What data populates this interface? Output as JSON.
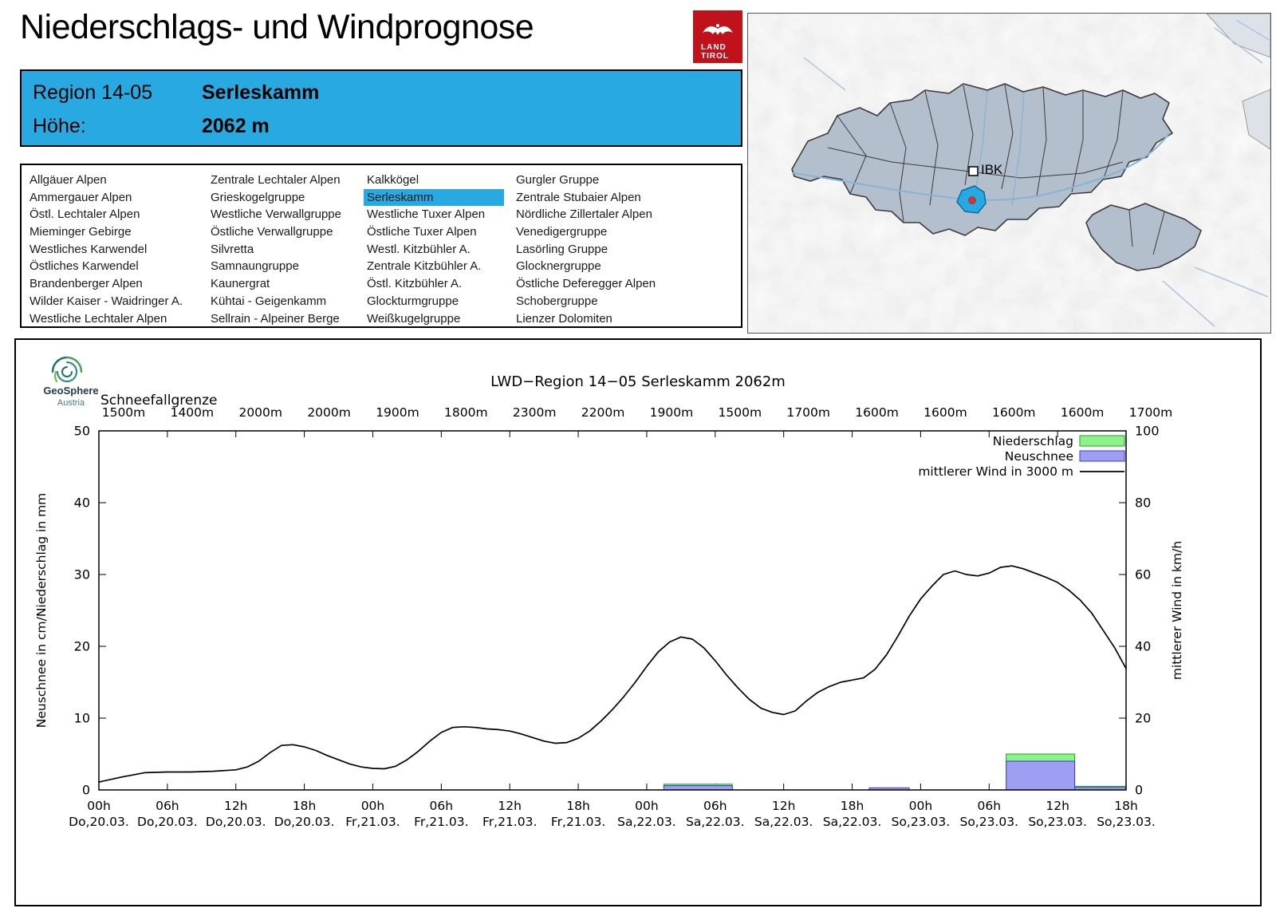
{
  "colors": {
    "accent": "#29a9e2",
    "precip_fill": "#8df28d",
    "precip_border": "#17a617",
    "snow_fill": "#9e9ef2",
    "snow_border": "#3c3cc8",
    "wind_line": "#000000",
    "logo_red": "#c1121c",
    "map_region_fill": "#b3bfcc",
    "map_region_border": "#3b3b3b",
    "map_river": "#86b3d6"
  },
  "header": {
    "title": "Niederschlags- und Windprognose",
    "logo_line1": "LAND",
    "logo_line2": "TIROL"
  },
  "region_box": {
    "region_label": "Region 14-05",
    "region_name": "Serleskamm",
    "altitude_label": "Höhe:",
    "altitude_value": "2062 m"
  },
  "region_list": {
    "selected": "Serleskamm",
    "columns": [
      [
        "Allgäuer Alpen",
        "Ammergauer Alpen",
        "Östl. Lechtaler Alpen",
        "Mieminger Gebirge",
        "Westliches Karwendel",
        "Östliches Karwendel",
        "Brandenberger Alpen",
        "Wilder Kaiser - Waidringer A.",
        "Westliche Lechtaler Alpen"
      ],
      [
        "Zentrale Lechtaler Alpen",
        "Grieskogelgruppe",
        "Westliche Verwallgruppe",
        "Östliche Verwallgruppe",
        "Silvretta",
        "Samnaungruppe",
        "Kaunergrat",
        "Kühtai - Geigenkamm",
        "Sellrain - Alpeiner Berge"
      ],
      [
        "Kalkkögel",
        "Serleskamm",
        "Westliche Tuxer Alpen",
        "Östliche Tuxer Alpen",
        "Westl. Kitzbühler A.",
        "Zentrale Kitzbühler A.",
        "Östl. Kitzbühler A.",
        "Glockturmgruppe",
        "Weißkugelgruppe"
      ],
      [
        "Gurgler Gruppe",
        "Zentrale Stubaier Alpen",
        "Nördliche Zillertaler Alpen",
        "Venedigergruppe",
        "Lasörling Gruppe",
        "Glocknergruppe",
        "Östliche Deferegger Alpen",
        "Schobergruppe",
        "Lienzer Dolomiten"
      ]
    ]
  },
  "map": {
    "city_label": "IBK"
  },
  "geosphere": {
    "name": "GeoSphere",
    "subtitle": "Austria"
  },
  "chart_data": {
    "type": "line",
    "title": "LWD−Region 14−05 Serleskamm 2062m",
    "snowline_label": "Schneefallgrenze",
    "snowline_values": [
      "1500m",
      "1400m",
      "2000m",
      "2000m",
      "1900m",
      "1800m",
      "2300m",
      "2200m",
      "1900m",
      "1500m",
      "1700m",
      "1600m",
      "1600m",
      "1600m",
      "1600m",
      "1700m"
    ],
    "ylabel_left": "Neuschnee in cm/Niederschlag in mm",
    "ylabel_right": "mittlerer Wind in km/h",
    "ylim_left": [
      0,
      50
    ],
    "ylim_right": [
      0,
      100
    ],
    "yticks_left": [
      0,
      10,
      20,
      30,
      40,
      50
    ],
    "yticks_right": [
      0,
      20,
      40,
      60,
      80,
      100
    ],
    "x_hours_range": [
      0,
      90
    ],
    "xticks": [
      {
        "hour": 0,
        "time": "00h",
        "date": "Do,20.03."
      },
      {
        "hour": 6,
        "time": "06h",
        "date": "Do,20.03."
      },
      {
        "hour": 12,
        "time": "12h",
        "date": "Do,20.03."
      },
      {
        "hour": 18,
        "time": "18h",
        "date": "Do,20.03."
      },
      {
        "hour": 24,
        "time": "00h",
        "date": "Fr,21.03."
      },
      {
        "hour": 30,
        "time": "06h",
        "date": "Fr,21.03."
      },
      {
        "hour": 36,
        "time": "12h",
        "date": "Fr,21.03."
      },
      {
        "hour": 42,
        "time": "18h",
        "date": "Fr,21.03."
      },
      {
        "hour": 48,
        "time": "00h",
        "date": "Sa,22.03."
      },
      {
        "hour": 54,
        "time": "06h",
        "date": "Sa,22.03."
      },
      {
        "hour": 60,
        "time": "12h",
        "date": "Sa,22.03."
      },
      {
        "hour": 66,
        "time": "18h",
        "date": "Sa,22.03."
      },
      {
        "hour": 72,
        "time": "00h",
        "date": "So,23.03."
      },
      {
        "hour": 78,
        "time": "06h",
        "date": "So,23.03."
      },
      {
        "hour": 84,
        "time": "12h",
        "date": "So,23.03."
      },
      {
        "hour": 90,
        "time": "18h",
        "date": "So,23.03."
      }
    ],
    "legend": [
      {
        "label": "Niederschlag",
        "type": "box",
        "color": "#8df28d",
        "border": "#17a617"
      },
      {
        "label": "Neuschnee",
        "type": "box",
        "color": "#9e9ef2",
        "border": "#3c3cc8"
      },
      {
        "label": "mittlerer Wind in 3000 m",
        "type": "line",
        "color": "#000000"
      }
    ],
    "wind_series": {
      "name": "mittlerer Wind in 3000 m",
      "axis": "right",
      "points": [
        [
          0,
          2.2
        ],
        [
          2,
          3.6
        ],
        [
          4,
          4.8
        ],
        [
          6,
          5
        ],
        [
          8,
          5
        ],
        [
          10,
          5.2
        ],
        [
          12,
          5.6
        ],
        [
          13,
          6.4
        ],
        [
          14,
          8
        ],
        [
          15,
          10.4
        ],
        [
          16,
          12.4
        ],
        [
          17,
          12.6
        ],
        [
          18,
          12
        ],
        [
          19,
          11
        ],
        [
          20,
          9.6
        ],
        [
          21,
          8.4
        ],
        [
          22,
          7.2
        ],
        [
          23,
          6.4
        ],
        [
          24,
          6
        ],
        [
          25,
          5.9
        ],
        [
          26,
          6.6
        ],
        [
          27,
          8.4
        ],
        [
          28,
          10.8
        ],
        [
          29,
          13.6
        ],
        [
          30,
          16
        ],
        [
          31,
          17.4
        ],
        [
          32,
          17.6
        ],
        [
          33,
          17.4
        ],
        [
          34,
          17
        ],
        [
          35,
          16.8
        ],
        [
          36,
          16.4
        ],
        [
          37,
          15.6
        ],
        [
          38,
          14.6
        ],
        [
          39,
          13.6
        ],
        [
          40,
          13
        ],
        [
          41,
          13.2
        ],
        [
          42,
          14.4
        ],
        [
          43,
          16.4
        ],
        [
          44,
          19.2
        ],
        [
          45,
          22.4
        ],
        [
          46,
          26
        ],
        [
          47,
          30
        ],
        [
          48,
          34.4
        ],
        [
          49,
          38.4
        ],
        [
          50,
          41.2
        ],
        [
          51,
          42.6
        ],
        [
          52,
          42
        ],
        [
          53,
          39.6
        ],
        [
          54,
          36
        ],
        [
          55,
          32
        ],
        [
          56,
          28.4
        ],
        [
          57,
          25.2
        ],
        [
          58,
          22.8
        ],
        [
          59,
          21.6
        ],
        [
          60,
          21
        ],
        [
          61,
          22
        ],
        [
          62,
          24.8
        ],
        [
          63,
          27.2
        ],
        [
          64,
          28.8
        ],
        [
          65,
          30
        ],
        [
          66,
          30.6
        ],
        [
          67,
          31.2
        ],
        [
          68,
          33.6
        ],
        [
          69,
          37.6
        ],
        [
          70,
          42.8
        ],
        [
          71,
          48.4
        ],
        [
          72,
          53.2
        ],
        [
          73,
          56.8
        ],
        [
          74,
          60
        ],
        [
          75,
          61
        ],
        [
          76,
          60
        ],
        [
          77,
          59.6
        ],
        [
          78,
          60.4
        ],
        [
          79,
          62
        ],
        [
          80,
          62.4
        ],
        [
          81,
          61.6
        ],
        [
          82,
          60.4
        ],
        [
          83,
          59.2
        ],
        [
          84,
          57.8
        ],
        [
          85,
          55.6
        ],
        [
          86,
          52.8
        ],
        [
          87,
          49.2
        ],
        [
          88,
          44.4
        ],
        [
          89,
          39.6
        ],
        [
          90,
          33.8
        ]
      ]
    },
    "precip_bars": [
      {
        "from": 49.5,
        "to": 55.5,
        "value": 0.8
      },
      {
        "from": 79.5,
        "to": 85.5,
        "value": 5.0
      },
      {
        "from": 85.5,
        "to": 90,
        "value": 0.5
      }
    ],
    "snow_bars": [
      {
        "from": 49.5,
        "to": 55.5,
        "value": 0.6
      },
      {
        "from": 67.5,
        "to": 71,
        "value": 0.3
      },
      {
        "from": 79.5,
        "to": 85.5,
        "value": 4.0
      },
      {
        "from": 85.5,
        "to": 90,
        "value": 0.35
      }
    ]
  }
}
